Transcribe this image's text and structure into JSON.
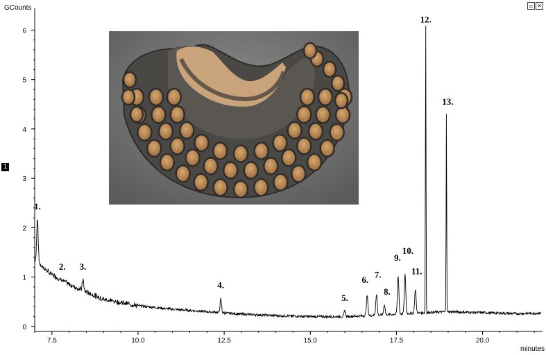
{
  "window": {
    "trace_badge": "1",
    "restore_icon": "restore-icon",
    "close_icon": "close-icon"
  },
  "chart_data": {
    "type": "line",
    "ylabel": "GCounts",
    "xlabel": "minutes",
    "xlim": [
      7.0,
      21.7
    ],
    "ylim": [
      -0.1,
      6.3
    ],
    "x_ticks": [
      "7.5",
      "10.0",
      "12.5",
      "15.0",
      "17.5",
      "20.0"
    ],
    "y_ticks": [
      "0",
      "1",
      "2",
      "3",
      "4",
      "5",
      "6"
    ],
    "grid": false,
    "baseline": [
      [
        7.0,
        1.35
      ],
      [
        7.4,
        1.1
      ],
      [
        8.0,
        0.85
      ],
      [
        9.0,
        0.55
      ],
      [
        10.0,
        0.42
      ],
      [
        11.0,
        0.35
      ],
      [
        12.0,
        0.3
      ],
      [
        13.0,
        0.25
      ],
      [
        14.0,
        0.22
      ],
      [
        15.0,
        0.2
      ],
      [
        16.0,
        0.2
      ],
      [
        17.0,
        0.23
      ],
      [
        18.0,
        0.27
      ],
      [
        19.0,
        0.3
      ],
      [
        20.0,
        0.28
      ],
      [
        21.0,
        0.26
      ],
      [
        21.7,
        0.27
      ]
    ],
    "peaks": [
      {
        "label": "1.",
        "x": 7.08,
        "y": 2.2
      },
      {
        "label": "2.",
        "x": 7.8,
        "y": 0.95
      },
      {
        "label": "3.",
        "x": 8.4,
        "y": 0.95
      },
      {
        "label": "4.",
        "x": 12.4,
        "y": 0.55
      },
      {
        "label": "5.",
        "x": 16.0,
        "y": 0.32
      },
      {
        "label": "6.",
        "x": 16.65,
        "y": 0.63
      },
      {
        "label": "7.",
        "x": 16.92,
        "y": 0.65
      },
      {
        "label": "8.",
        "x": 17.15,
        "y": 0.45
      },
      {
        "label": "9.",
        "x": 17.55,
        "y": 1.02
      },
      {
        "label": "10.",
        "x": 17.75,
        "y": 1.05
      },
      {
        "label": "11.",
        "x": 18.05,
        "y": 0.75
      },
      {
        "label": "12.",
        "x": 18.35,
        "y": 6.1
      },
      {
        "label": "13.",
        "x": 18.95,
        "y": 4.35
      }
    ]
  }
}
